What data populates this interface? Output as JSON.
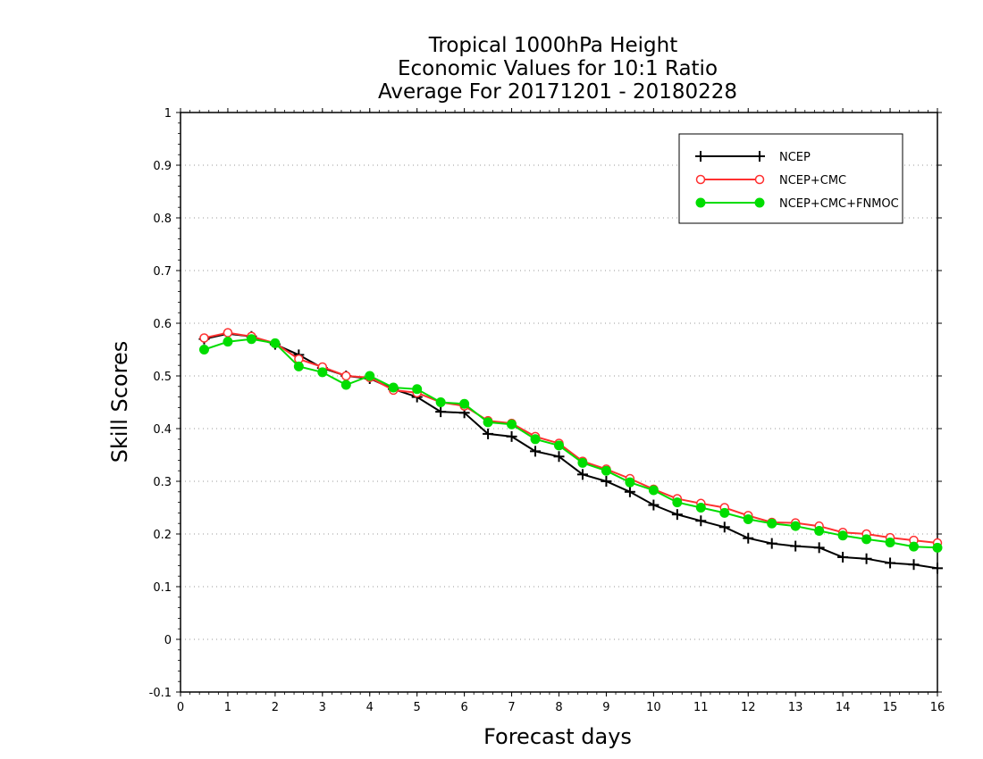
{
  "chart_data": {
    "type": "line",
    "title_lines": [
      "Tropical 1000hPa Height",
      "Economic Values for 10:1 Ratio",
      "Average For 20171201 - 20180228"
    ],
    "xlabel": "Forecast days",
    "ylabel": "Skill Scores",
    "xlim": [
      0,
      16
    ],
    "ylim": [
      -0.1,
      1
    ],
    "x_ticks": [
      0,
      1,
      2,
      3,
      4,
      5,
      6,
      7,
      8,
      9,
      10,
      11,
      12,
      13,
      14,
      15,
      16
    ],
    "x_tick_labels": [
      "0",
      "1",
      "2",
      "3",
      "4",
      "5",
      "6",
      "7",
      "8",
      "9",
      "10",
      "11",
      "12",
      "13",
      "14",
      "15",
      "16"
    ],
    "y_ticks": [
      -0.1,
      0,
      0.1,
      0.2,
      0.3,
      0.4,
      0.5,
      0.6,
      0.7,
      0.8,
      0.9,
      1
    ],
    "y_tick_labels": [
      "-0.1",
      "0",
      "0.1",
      "0.2",
      "0.3",
      "0.4",
      "0.5",
      "0.6",
      "0.7",
      "0.8",
      "0.9",
      "1"
    ],
    "grid": "horizontal-dotted",
    "legend_position": "top-right",
    "x": [
      0.5,
      1,
      1.5,
      2,
      2.5,
      3,
      3.5,
      4,
      4.5,
      5,
      5.5,
      6,
      6.5,
      7,
      7.5,
      8,
      8.5,
      9,
      9.5,
      10,
      10.5,
      11,
      11.5,
      12,
      12.5,
      13,
      13.5,
      14,
      14.5,
      15,
      15.5,
      16
    ],
    "series": [
      {
        "name": "NCEP",
        "color": "#000000",
        "marker": "plus",
        "values": [
          0.57,
          0.58,
          0.575,
          0.56,
          0.54,
          0.515,
          0.5,
          0.495,
          0.475,
          0.46,
          0.432,
          0.43,
          0.39,
          0.385,
          0.357,
          0.347,
          0.313,
          0.3,
          0.28,
          0.255,
          0.237,
          0.225,
          0.213,
          0.192,
          0.182,
          0.177,
          0.174,
          0.156,
          0.153,
          0.145,
          0.142,
          0.135
        ]
      },
      {
        "name": "NCEP+CMC",
        "color": "#ff3030",
        "marker": "open-circle",
        "values": [
          0.572,
          0.582,
          0.575,
          0.562,
          0.532,
          0.517,
          0.5,
          0.497,
          0.473,
          0.468,
          0.45,
          0.443,
          0.415,
          0.41,
          0.385,
          0.372,
          0.338,
          0.323,
          0.305,
          0.285,
          0.267,
          0.258,
          0.25,
          0.235,
          0.222,
          0.221,
          0.215,
          0.203,
          0.2,
          0.193,
          0.188,
          0.183
        ]
      },
      {
        "name": "NCEP+CMC+FNMOC",
        "color": "#00dd00",
        "marker": "filled-circle",
        "values": [
          0.55,
          0.565,
          0.57,
          0.562,
          0.518,
          0.507,
          0.483,
          0.5,
          0.478,
          0.475,
          0.45,
          0.447,
          0.412,
          0.408,
          0.38,
          0.368,
          0.335,
          0.32,
          0.298,
          0.283,
          0.26,
          0.25,
          0.24,
          0.228,
          0.22,
          0.215,
          0.206,
          0.197,
          0.19,
          0.184,
          0.176,
          0.174
        ]
      }
    ]
  }
}
